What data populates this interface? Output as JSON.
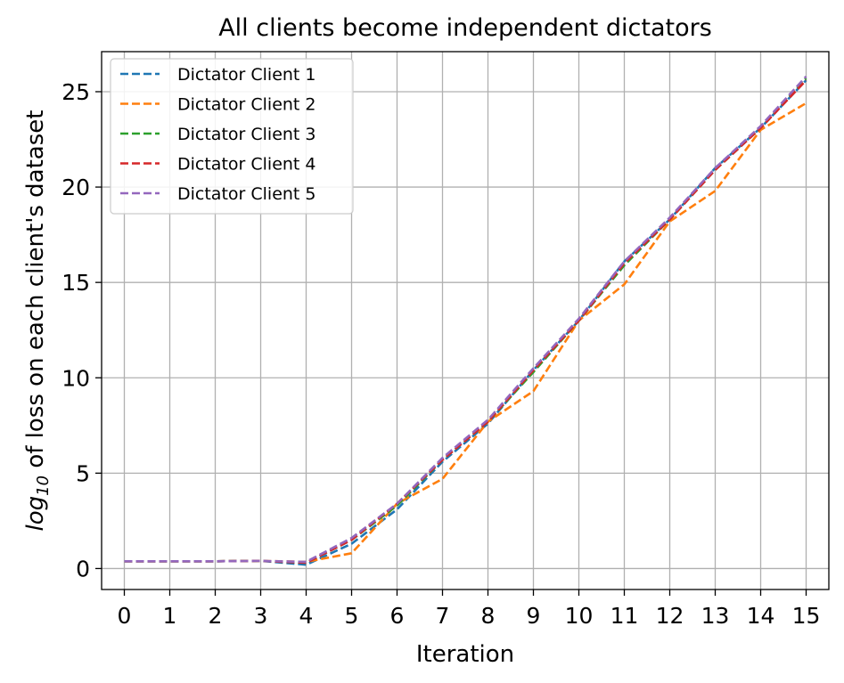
{
  "chart_data": {
    "type": "line",
    "title": "All clients become independent dictators",
    "xlabel": "Iteration",
    "ylabel_pre": "log",
    "ylabel_sub": "10",
    "ylabel_post": " of loss on each client's dataset",
    "x": [
      0,
      1,
      2,
      3,
      4,
      5,
      6,
      7,
      8,
      9,
      10,
      11,
      12,
      13,
      14,
      15
    ],
    "xticks": [
      "0",
      "1",
      "2",
      "3",
      "4",
      "5",
      "6",
      "7",
      "8",
      "9",
      "10",
      "11",
      "12",
      "13",
      "14",
      "15"
    ],
    "yticks": [
      "0",
      "5",
      "10",
      "15",
      "20",
      "25"
    ],
    "ytick_values": [
      0,
      5,
      10,
      15,
      20,
      25
    ],
    "xlim": [
      -0.5,
      15.5
    ],
    "ylim": [
      -1.1,
      27.1
    ],
    "grid": true,
    "legend": "top-left",
    "line_style": "dashed",
    "series": [
      {
        "name": "Dictator Client 1",
        "color": "#1f77b4",
        "values": [
          0.38,
          0.38,
          0.38,
          0.4,
          0.2,
          1.3,
          3.1,
          5.6,
          7.6,
          10.4,
          13.0,
          16.1,
          18.3,
          21.0,
          23.1,
          25.6
        ]
      },
      {
        "name": "Dictator Client 2",
        "color": "#ff7f0e",
        "values": [
          0.38,
          0.38,
          0.38,
          0.4,
          0.35,
          0.8,
          3.4,
          4.7,
          7.7,
          9.3,
          13.0,
          14.9,
          18.2,
          19.8,
          23.0,
          24.4
        ]
      },
      {
        "name": "Dictator Client 3",
        "color": "#2ca02c",
        "values": [
          0.38,
          0.38,
          0.38,
          0.4,
          0.3,
          1.5,
          3.3,
          5.7,
          7.7,
          10.3,
          13.0,
          15.9,
          18.3,
          20.9,
          23.1,
          25.7
        ]
      },
      {
        "name": "Dictator Client 4",
        "color": "#d62728",
        "values": [
          0.38,
          0.38,
          0.38,
          0.4,
          0.3,
          1.5,
          3.4,
          5.7,
          7.7,
          10.4,
          13.0,
          16.0,
          18.3,
          20.9,
          23.1,
          25.6
        ]
      },
      {
        "name": "Dictator Client 5",
        "color": "#9467bd",
        "values": [
          0.38,
          0.38,
          0.38,
          0.4,
          0.35,
          1.6,
          3.4,
          5.8,
          7.8,
          10.5,
          13.1,
          16.1,
          18.4,
          21.0,
          23.2,
          25.8
        ]
      }
    ]
  }
}
